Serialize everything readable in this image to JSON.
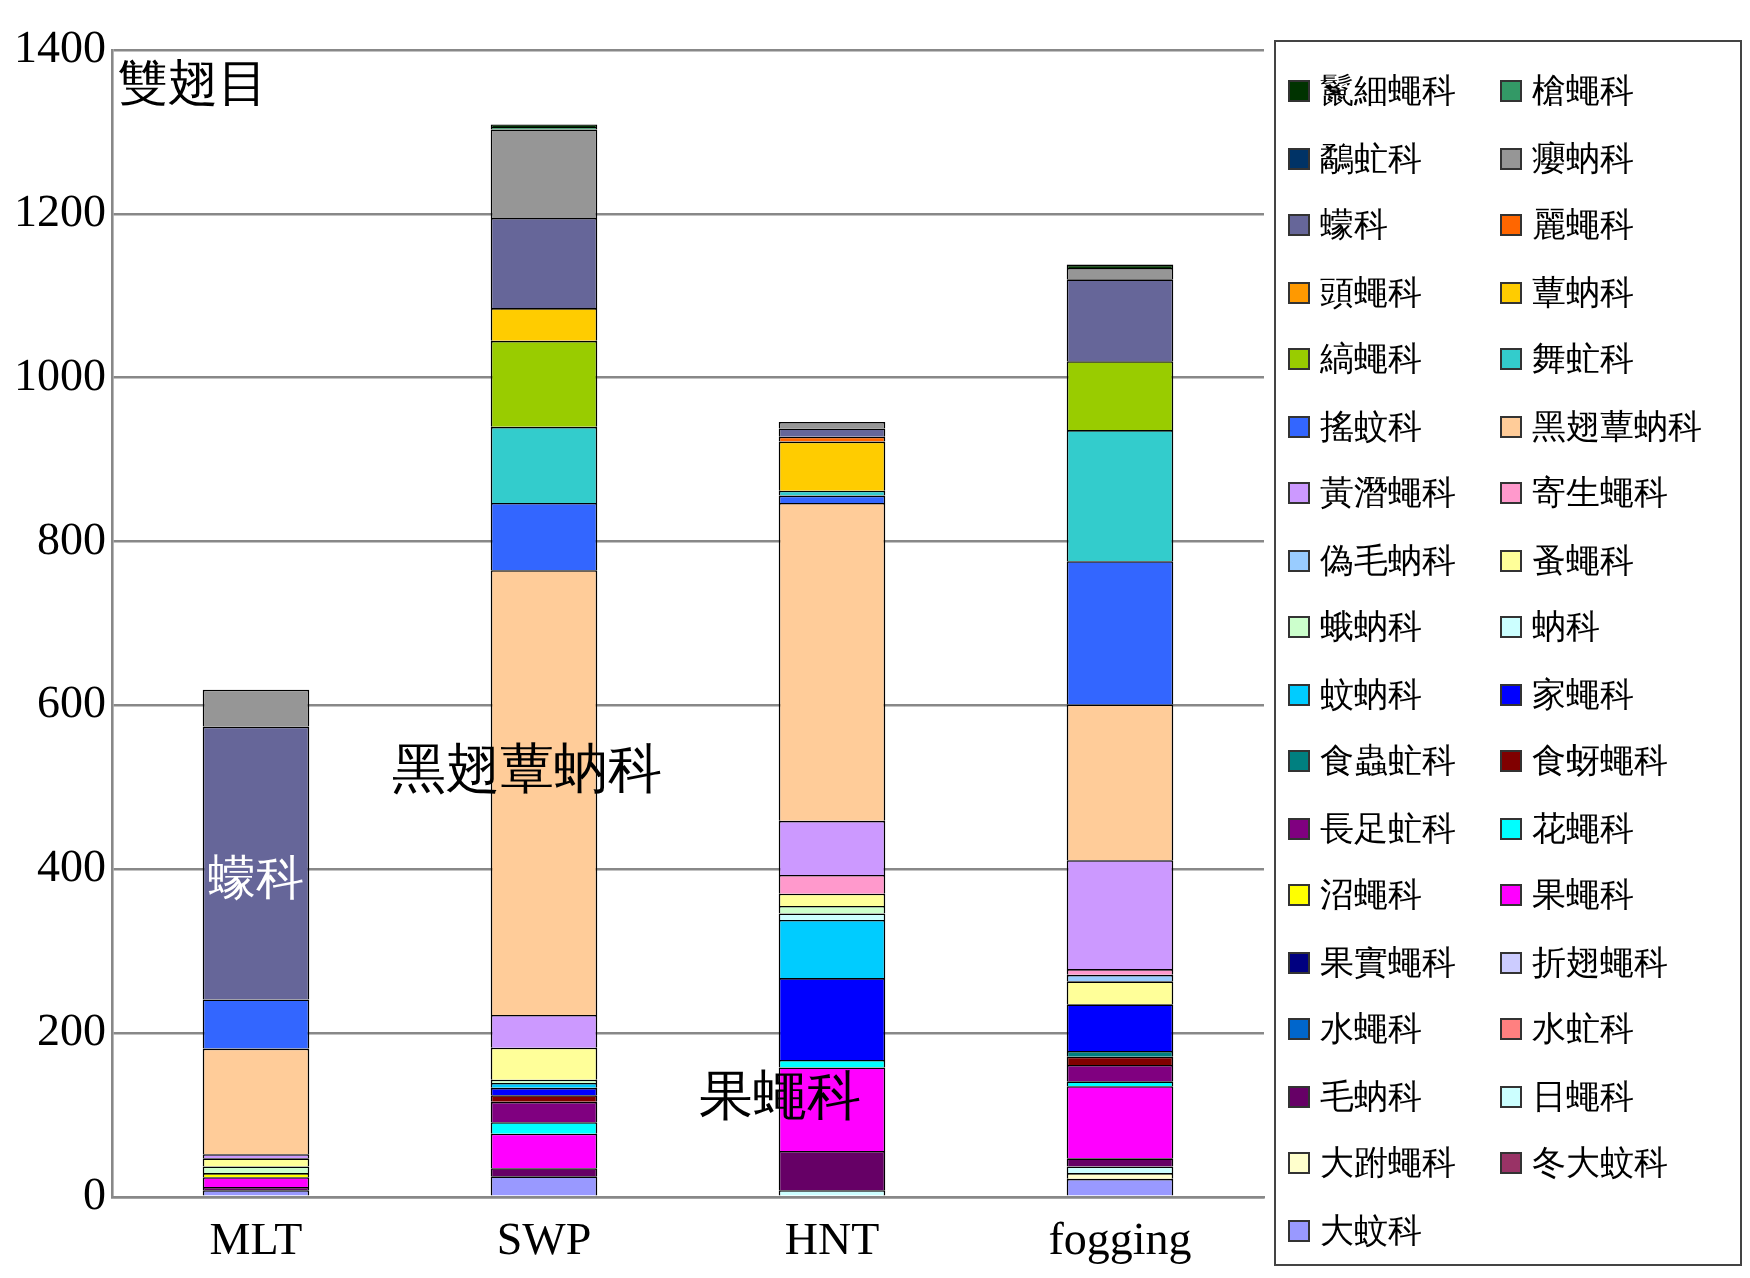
{
  "chart_data": {
    "type": "bar",
    "title": "雙翅目",
    "categories": [
      "MLT",
      "SWP",
      "HNT",
      "fogging"
    ],
    "stacked": true,
    "ylim": [
      0,
      1400
    ],
    "yticks": [
      0,
      200,
      400,
      600,
      800,
      1000,
      1200,
      1400
    ],
    "grid": "y",
    "legend": "right",
    "annotations": [
      "蠓科",
      "黑翅蕈蚋科",
      "果蠅科"
    ],
    "series": [
      {
        "name": "大蚊科",
        "color": "#9999ff",
        "values": [
          8,
          25,
          null,
          22
        ]
      },
      {
        "name": "冬大蚊科",
        "color": "#993366",
        "values": [
          null,
          null,
          null,
          null
        ]
      },
      {
        "name": "大跗蠅科",
        "color": "#ffffcc",
        "values": [
          null,
          null,
          null,
          7
        ]
      },
      {
        "name": "日蠅科",
        "color": "#ccffff",
        "values": [
          null,
          null,
          8,
          8
        ]
      },
      {
        "name": "毛蚋科",
        "color": "#660066",
        "values": [
          4,
          10,
          48,
          10
        ]
      },
      {
        "name": "水虻科",
        "color": "#ff8080",
        "values": [
          null,
          null,
          null,
          null
        ]
      },
      {
        "name": "水蠅科",
        "color": "#0066cc",
        "values": [
          null,
          null,
          null,
          null
        ]
      },
      {
        "name": "折翅蠅科",
        "color": "#ccccff",
        "values": [
          null,
          null,
          null,
          null
        ]
      },
      {
        "name": "果實蠅科",
        "color": "#000080",
        "values": [
          null,
          null,
          null,
          null
        ]
      },
      {
        "name": "果蠅科",
        "color": "#ff00ff",
        "values": [
          12,
          42,
          102,
          88
        ]
      },
      {
        "name": "沼蠅科",
        "color": "#ffff00",
        "values": [
          5,
          null,
          null,
          null
        ]
      },
      {
        "name": "花蠅科",
        "color": "#00ffff",
        "values": [
          null,
          14,
          9,
          6
        ]
      },
      {
        "name": "長足虻科",
        "color": "#800080",
        "values": [
          null,
          25,
          null,
          20
        ]
      },
      {
        "name": "食蚜蠅科",
        "color": "#800000",
        "values": [
          null,
          8,
          null,
          10
        ]
      },
      {
        "name": "食蟲虻科",
        "color": "#008080",
        "values": [
          null,
          null,
          null,
          7
        ]
      },
      {
        "name": "家蠅科",
        "color": "#0000ff",
        "values": [
          null,
          9,
          100,
          57
        ]
      },
      {
        "name": "蚊蚋科",
        "color": "#00ccff",
        "values": [
          null,
          6,
          71,
          null
        ]
      },
      {
        "name": "蚋科",
        "color": "#ccffff",
        "values": [
          null,
          null,
          8,
          null
        ]
      },
      {
        "name": "蛾蚋科",
        "color": "#ccffcc",
        "values": [
          8,
          4,
          9,
          null
        ]
      },
      {
        "name": "蚤蠅科",
        "color": "#ffff99",
        "values": [
          10,
          39,
          15,
          28
        ]
      },
      {
        "name": "偽毛蚋科",
        "color": "#99ccff",
        "values": [
          null,
          null,
          null,
          8
        ]
      },
      {
        "name": "寄生蠅科",
        "color": "#ff99cc",
        "values": [
          null,
          null,
          23,
          7
        ]
      },
      {
        "name": "黃潛蠅科",
        "color": "#cc99ff",
        "values": [
          5,
          40,
          66,
          133
        ]
      },
      {
        "name": "黑翅蕈蚋科",
        "color": "#ffcc99",
        "values": [
          129,
          543,
          388,
          190
        ]
      },
      {
        "name": "搖蚊科",
        "color": "#3366ff",
        "values": [
          60,
          82,
          9,
          175
        ]
      },
      {
        "name": "舞虻科",
        "color": "#33cccc",
        "values": [
          null,
          93,
          6,
          160
        ]
      },
      {
        "name": "縞蠅科",
        "color": "#99cc00",
        "values": [
          null,
          105,
          null,
          84
        ]
      },
      {
        "name": "蕈蚋科",
        "color": "#ffcc00",
        "values": [
          null,
          40,
          60,
          null
        ]
      },
      {
        "name": "頭蠅科",
        "color": "#ff9900",
        "values": [
          null,
          null,
          null,
          null
        ]
      },
      {
        "name": "麗蠅科",
        "color": "#ff6600",
        "values": [
          null,
          null,
          6,
          null
        ]
      },
      {
        "name": "蠓科",
        "color": "#666699",
        "values": [
          333,
          110,
          10,
          100
        ]
      },
      {
        "name": "癭蚋科",
        "color": "#969696",
        "values": [
          45,
          108,
          8,
          14
        ]
      },
      {
        "name": "鷸虻科",
        "color": "#003366",
        "values": [
          null,
          null,
          null,
          null
        ]
      },
      {
        "name": "槍蠅科",
        "color": "#339966",
        "values": [
          null,
          3,
          null,
          null
        ]
      },
      {
        "name": "鬣細蠅科",
        "color": "#003300",
        "values": [
          null,
          3,
          null,
          4
        ]
      }
    ]
  }
}
